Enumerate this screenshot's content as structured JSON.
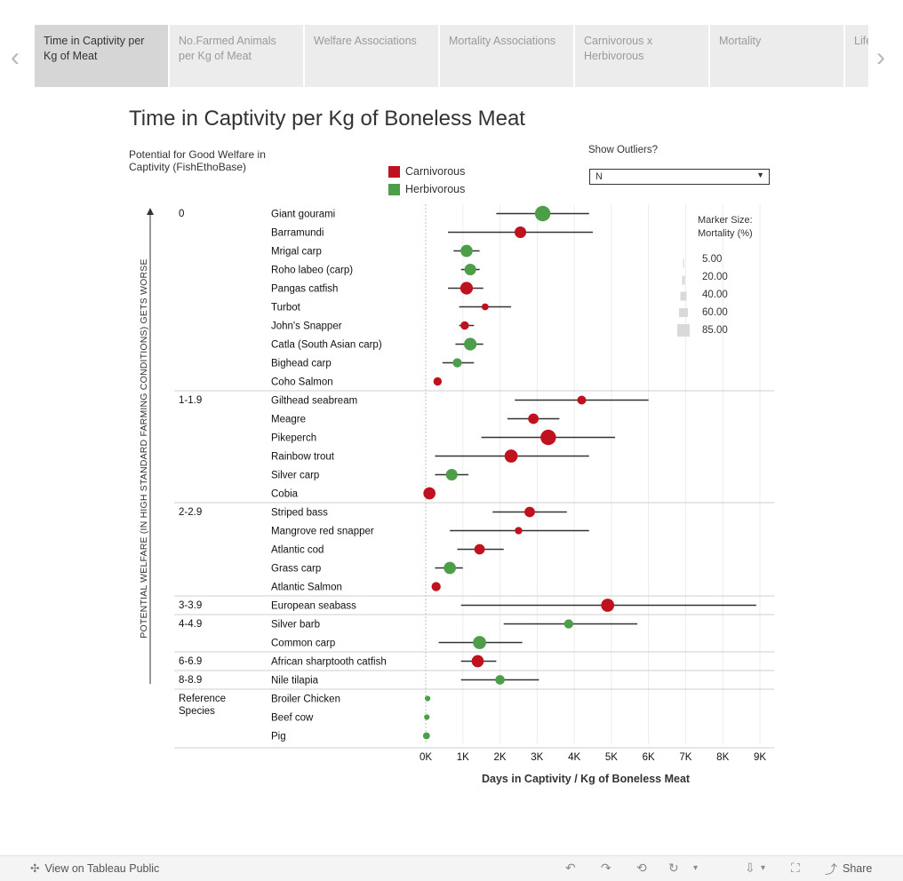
{
  "tabs": [
    {
      "label": "Time in Captivity per Kg of Meat",
      "active": true
    },
    {
      "label": "No.Farmed Animals per Kg of Meat",
      "active": false
    },
    {
      "label": "Welfare Associations",
      "active": false
    },
    {
      "label": "Mortality Associations",
      "active": false
    },
    {
      "label": "Carnivorous x Herbivorous",
      "active": false
    },
    {
      "label": "Mortality",
      "active": false
    },
    {
      "label": "Life",
      "active": false
    }
  ],
  "nav": {
    "prev_icon": "‹",
    "next_icon": "›"
  },
  "page_title": "Time in Captivity per Kg of Boneless Meat",
  "header": {
    "group_column": "Potential for Good Welfare in Captivity (FishEthoBase)"
  },
  "legend": {
    "items": [
      {
        "label": "Carnivorous",
        "color": "#c0111f"
      },
      {
        "label": "Herbivorous",
        "color": "#4c9e48"
      }
    ]
  },
  "outliers": {
    "label": "Show Outliers?",
    "value": "N"
  },
  "size_legend": {
    "title_line1": "Marker Size:",
    "title_line2": "Mortality (%)",
    "items": [
      "5.00",
      "20.00",
      "40.00",
      "60.00",
      "85.00"
    ]
  },
  "y_axis_label": "POTENTIAL WELFARE (IN HIGH STANDARD FARMING CONDITIONS) GETS WORSE",
  "chart_data": {
    "type": "scatter",
    "title": "Time in Captivity per Kg of Boneless Meat",
    "xlabel": "Days in Captivity / Kg of Boneless Meat",
    "ylabel": "Potential Welfare (in high standard farming conditions) gets worse",
    "xlim": [
      0,
      9300
    ],
    "xticks": [
      "0K",
      "1K",
      "2K",
      "3K",
      "4K",
      "5K",
      "6K",
      "7K",
      "8K",
      "9K"
    ],
    "groups": [
      {
        "label": "0",
        "rows": [
          {
            "name": "Giant gourami",
            "type": "Herbivorous",
            "value": 3150,
            "min": 1900,
            "max": 4400,
            "mortality": 85
          },
          {
            "name": "Barramundi",
            "type": "Carnivorous",
            "value": 2550,
            "min": 600,
            "max": 4500,
            "mortality": 40
          },
          {
            "name": "Mrigal carp",
            "type": "Herbivorous",
            "value": 1100,
            "min": 750,
            "max": 1450,
            "mortality": 45
          },
          {
            "name": "Roho labeo (carp)",
            "type": "Herbivorous",
            "value": 1200,
            "min": 950,
            "max": 1450,
            "mortality": 40
          },
          {
            "name": "Pangas catfish",
            "type": "Carnivorous",
            "value": 1100,
            "min": 600,
            "max": 1550,
            "mortality": 50
          },
          {
            "name": "Turbot",
            "type": "Carnivorous",
            "value": 1600,
            "min": 900,
            "max": 2300,
            "mortality": 8
          },
          {
            "name": "John's Snapper",
            "type": "Carnivorous",
            "value": 1050,
            "min": 900,
            "max": 1300,
            "mortality": 15
          },
          {
            "name": "Catla (South Asian carp)",
            "type": "Herbivorous",
            "value": 1200,
            "min": 800,
            "max": 1550,
            "mortality": 50
          },
          {
            "name": "Bighead carp",
            "type": "Herbivorous",
            "value": 850,
            "min": 450,
            "max": 1300,
            "mortality": 20
          },
          {
            "name": "Coho Salmon",
            "type": "Carnivorous",
            "value": 320,
            "min": 320,
            "max": 320,
            "mortality": 15
          }
        ]
      },
      {
        "label": "1-1.9",
        "rows": [
          {
            "name": "Gilthead seabream",
            "type": "Carnivorous",
            "value": 4200,
            "min": 2400,
            "max": 6000,
            "mortality": 18
          },
          {
            "name": "Meagre",
            "type": "Carnivorous",
            "value": 2900,
            "min": 2200,
            "max": 3600,
            "mortality": 30
          },
          {
            "name": "Pikeperch",
            "type": "Carnivorous",
            "value": 3300,
            "min": 1500,
            "max": 5100,
            "mortality": 85
          },
          {
            "name": "Rainbow trout",
            "type": "Carnivorous",
            "value": 2300,
            "min": 250,
            "max": 4400,
            "mortality": 55
          },
          {
            "name": "Silver carp",
            "type": "Herbivorous",
            "value": 700,
            "min": 250,
            "max": 1150,
            "mortality": 40
          },
          {
            "name": "Cobia",
            "type": "Carnivorous",
            "value": 100,
            "min": 100,
            "max": 100,
            "mortality": 45
          }
        ]
      },
      {
        "label": "2-2.9",
        "rows": [
          {
            "name": "Striped bass",
            "type": "Carnivorous",
            "value": 2800,
            "min": 1800,
            "max": 3800,
            "mortality": 30
          },
          {
            "name": "Mangrove red snapper",
            "type": "Carnivorous",
            "value": 2500,
            "min": 650,
            "max": 4400,
            "mortality": 10
          },
          {
            "name": "Atlantic cod",
            "type": "Carnivorous",
            "value": 1450,
            "min": 850,
            "max": 2100,
            "mortality": 30
          },
          {
            "name": "Grass carp",
            "type": "Herbivorous",
            "value": 650,
            "min": 250,
            "max": 1000,
            "mortality": 45
          },
          {
            "name": "Atlantic Salmon",
            "type": "Carnivorous",
            "value": 280,
            "min": 200,
            "max": 380,
            "mortality": 20
          }
        ]
      },
      {
        "label": "3-3.9",
        "rows": [
          {
            "name": "European seabass",
            "type": "Carnivorous",
            "value": 4900,
            "min": 950,
            "max": 8900,
            "mortality": 55
          }
        ]
      },
      {
        "label": "4-4.9",
        "rows": [
          {
            "name": "Silver barb",
            "type": "Herbivorous",
            "value": 3850,
            "min": 2100,
            "max": 5700,
            "mortality": 20
          },
          {
            "name": "Common carp",
            "type": "Herbivorous",
            "value": 1450,
            "min": 350,
            "max": 2600,
            "mortality": 55
          }
        ]
      },
      {
        "label": "6-6.9",
        "rows": [
          {
            "name": "African sharptooth catfish",
            "type": "Carnivorous",
            "value": 1400,
            "min": 950,
            "max": 1900,
            "mortality": 45
          }
        ]
      },
      {
        "label": "8-8.9",
        "rows": [
          {
            "name": "Nile tilapia",
            "type": "Herbivorous",
            "value": 2000,
            "min": 950,
            "max": 3050,
            "mortality": 22
          }
        ]
      },
      {
        "label": "Reference Species",
        "rows": [
          {
            "name": "Broiler Chicken",
            "type": "Herbivorous",
            "value": 50,
            "min": 50,
            "max": 50,
            "mortality": 3
          },
          {
            "name": "Beef cow",
            "type": "Herbivorous",
            "value": 30,
            "min": 30,
            "max": 30,
            "mortality": 3
          },
          {
            "name": "Pig",
            "type": "Herbivorous",
            "value": 20,
            "min": 20,
            "max": 20,
            "mortality": 8
          }
        ]
      }
    ]
  },
  "footer": {
    "view_label": "View on Tableau Public",
    "share_label": "Share"
  }
}
